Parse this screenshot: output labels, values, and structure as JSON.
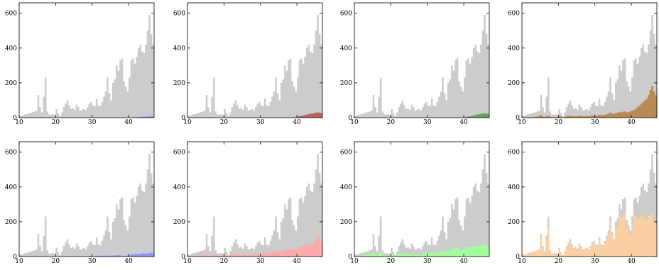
{
  "chart_data": {
    "type": "histogram-grid",
    "rows": 2,
    "cols": 4,
    "xlim": [
      10,
      47
    ],
    "ylim": [
      0,
      660
    ],
    "xticks": [
      10,
      20,
      30,
      40
    ],
    "yticks": [
      0,
      200,
      400,
      600
    ],
    "bin_width": 0.5,
    "background_color": "#cccccc",
    "background_values": [
      10,
      12,
      16,
      20,
      22,
      25,
      28,
      32,
      35,
      40,
      130,
      60,
      30,
      120,
      230,
      35,
      18,
      18,
      20,
      16,
      50,
      25,
      8,
      30,
      60,
      80,
      100,
      70,
      50,
      55,
      45,
      75,
      60,
      40,
      45,
      50,
      40,
      60,
      80,
      90,
      70,
      65,
      110,
      70,
      65,
      90,
      120,
      150,
      230,
      140,
      100,
      200,
      220,
      300,
      270,
      330,
      340,
      210,
      180,
      150,
      230,
      330,
      340,
      310,
      350,
      400,
      420,
      380,
      370,
      420,
      500,
      590,
      480,
      420,
      400,
      420,
      440,
      420,
      380,
      350,
      300,
      300,
      270,
      240,
      200,
      130
    ],
    "panels": [
      {
        "color": "#7b7bff",
        "values": [
          0,
          0,
          0,
          0,
          0,
          0,
          0,
          0,
          0,
          0,
          0,
          0,
          0,
          0,
          0,
          0,
          0,
          0,
          0,
          0,
          0,
          0,
          0,
          0,
          0,
          0,
          0,
          0,
          0,
          0,
          0,
          0,
          0,
          0,
          0,
          0,
          0,
          0,
          0,
          0,
          0,
          0,
          0,
          0,
          0,
          0,
          0,
          0,
          0,
          0,
          0,
          0,
          0,
          0,
          0,
          0,
          0,
          0,
          0,
          0,
          0,
          0,
          2,
          2,
          3,
          3,
          4,
          5,
          5,
          6,
          6,
          7,
          6,
          6,
          5,
          5,
          6,
          5,
          5,
          6,
          5,
          5,
          4,
          4,
          3,
          2
        ]
      },
      {
        "color": "#b55a5a",
        "values": [
          0,
          0,
          0,
          0,
          0,
          0,
          0,
          0,
          0,
          0,
          0,
          0,
          0,
          0,
          0,
          0,
          0,
          0,
          0,
          0,
          0,
          0,
          0,
          0,
          0,
          0,
          0,
          0,
          0,
          0,
          0,
          0,
          0,
          0,
          0,
          0,
          0,
          0,
          0,
          0,
          0,
          0,
          0,
          0,
          0,
          0,
          0,
          0,
          0,
          0,
          0,
          0,
          0,
          0,
          0,
          0,
          0,
          2,
          3,
          4,
          6,
          8,
          10,
          12,
          15,
          18,
          20,
          24,
          22,
          26,
          28,
          30,
          28,
          26,
          24,
          22,
          22,
          20,
          18,
          16,
          14,
          12,
          10,
          8,
          6,
          3
        ]
      },
      {
        "color": "#5aa05a",
        "values": [
          0,
          0,
          0,
          0,
          0,
          0,
          0,
          0,
          0,
          0,
          0,
          0,
          0,
          0,
          0,
          0,
          0,
          0,
          0,
          0,
          0,
          0,
          0,
          0,
          0,
          0,
          0,
          0,
          0,
          0,
          0,
          0,
          0,
          0,
          0,
          0,
          0,
          0,
          0,
          0,
          0,
          0,
          0,
          0,
          0,
          0,
          0,
          0,
          0,
          0,
          0,
          0,
          0,
          0,
          0,
          0,
          0,
          0,
          2,
          3,
          4,
          5,
          6,
          8,
          10,
          12,
          15,
          18,
          20,
          22,
          24,
          25,
          24,
          22,
          20,
          18,
          16,
          14,
          12,
          10,
          8,
          6,
          5,
          4,
          3,
          2
        ]
      },
      {
        "color": "#b8864f",
        "values": [
          2,
          2,
          2,
          3,
          3,
          3,
          4,
          5,
          6,
          10,
          16,
          6,
          4,
          8,
          12,
          5,
          3,
          3,
          4,
          3,
          8,
          5,
          2,
          5,
          8,
          10,
          12,
          9,
          8,
          9,
          8,
          12,
          10,
          8,
          8,
          9,
          8,
          10,
          12,
          14,
          12,
          12,
          16,
          14,
          14,
          16,
          20,
          22,
          30,
          24,
          22,
          26,
          28,
          32,
          30,
          34,
          36,
          30,
          32,
          36,
          40,
          46,
          50,
          60,
          70,
          80,
          90,
          100,
          110,
          130,
          160,
          180,
          150,
          130,
          100,
          110,
          120,
          105,
          90,
          85,
          70,
          55,
          45,
          35,
          20,
          8
        ]
      },
      {
        "color": "#8f8fff",
        "values": [
          0,
          0,
          0,
          0,
          0,
          0,
          0,
          0,
          0,
          0,
          0,
          0,
          0,
          0,
          0,
          0,
          0,
          0,
          0,
          0,
          0,
          0,
          0,
          0,
          0,
          0,
          0,
          0,
          0,
          0,
          0,
          0,
          0,
          0,
          0,
          0,
          0,
          0,
          0,
          0,
          2,
          3,
          4,
          5,
          5,
          5,
          5,
          6,
          5,
          4,
          5,
          6,
          6,
          7,
          8,
          6,
          5,
          4,
          5,
          6,
          8,
          10,
          12,
          14,
          15,
          16,
          15,
          18,
          20,
          16,
          18,
          20,
          22,
          20,
          24,
          22,
          22,
          20,
          18,
          20,
          16,
          12,
          10,
          6,
          4,
          2
        ]
      },
      {
        "color": "#ffa8a8",
        "values": [
          2,
          2,
          3,
          3,
          3,
          4,
          4,
          5,
          5,
          6,
          8,
          6,
          4,
          8,
          14,
          5,
          3,
          3,
          4,
          3,
          10,
          6,
          3,
          6,
          10,
          12,
          14,
          10,
          8,
          9,
          8,
          12,
          10,
          8,
          9,
          10,
          8,
          12,
          16,
          18,
          14,
          14,
          20,
          16,
          16,
          20,
          24,
          28,
          34,
          28,
          24,
          30,
          32,
          38,
          36,
          42,
          44,
          38,
          38,
          42,
          50,
          60,
          62,
          58,
          62,
          70,
          75,
          70,
          68,
          80,
          100,
          120,
          95,
          80,
          72,
          74,
          78,
          76,
          72,
          66,
          58,
          52,
          48,
          40,
          30,
          15
        ]
      },
      {
        "color": "#a0ff9a",
        "values": [
          2,
          3,
          4,
          5,
          6,
          7,
          8,
          10,
          12,
          14,
          26,
          14,
          8,
          16,
          28,
          10,
          6,
          6,
          6,
          5,
          12,
          8,
          3,
          8,
          14,
          18,
          20,
          16,
          12,
          14,
          12,
          16,
          14,
          10,
          12,
          14,
          10,
          16,
          20,
          24,
          18,
          16,
          24,
          20,
          18,
          22,
          26,
          30,
          40,
          30,
          25,
          34,
          38,
          48,
          44,
          50,
          52,
          44,
          40,
          38,
          46,
          56,
          58,
          52,
          56,
          62,
          64,
          60,
          58,
          62,
          70,
          74,
          62,
          58,
          52,
          56,
          60,
          54,
          48,
          46,
          40,
          30,
          26,
          20,
          12,
          5
        ]
      },
      {
        "color": "#ffd0a0",
        "values": [
          8,
          10,
          14,
          18,
          20,
          24,
          26,
          30,
          32,
          38,
          120,
          55,
          28,
          100,
          160,
          30,
          16,
          16,
          18,
          14,
          40,
          22,
          6,
          26,
          52,
          68,
          84,
          60,
          44,
          48,
          40,
          66,
          52,
          34,
          38,
          42,
          34,
          52,
          72,
          80,
          62,
          58,
          96,
          62,
          56,
          80,
          104,
          130,
          200,
          122,
          88,
          160,
          180,
          230,
          220,
          240,
          245,
          170,
          145,
          120,
          180,
          232,
          238,
          210,
          220,
          236,
          240,
          220,
          210,
          232,
          236,
          250,
          210,
          180,
          150,
          140,
          130,
          120,
          110,
          100,
          90,
          80,
          60,
          50,
          30,
          10
        ]
      }
    ]
  }
}
